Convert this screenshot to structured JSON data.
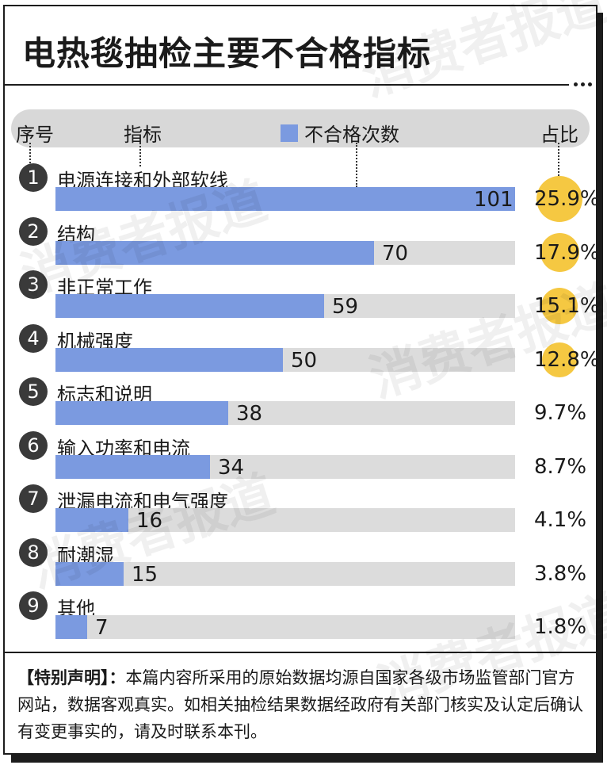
{
  "title": "电热毯抽检主要不合格指标",
  "header": {
    "seq_label": "序号",
    "indicator_label": "指标",
    "legend_label": "不合格次数",
    "pct_label": "占比"
  },
  "colors": {
    "bar": "#7b9ae0",
    "track": "#dcdcdc",
    "pct_circle": "#f5c842",
    "badge": "#3a3a3a"
  },
  "chart_data": {
    "type": "bar",
    "orientation": "horizontal",
    "legend": [
      "不合格次数"
    ],
    "categories": [
      "电源连接和外部软线",
      "结构",
      "非正常工作",
      "机械强度",
      "标志和说明",
      "输入功率和电流",
      "泄漏电流和电气强度",
      "耐潮湿",
      "其他"
    ],
    "values": [
      101,
      70,
      59,
      50,
      38,
      34,
      16,
      15,
      7
    ],
    "percent_labels": [
      "25.9%",
      "17.9%",
      "15.1%",
      "12.8%",
      "9.7%",
      "8.7%",
      "4.1%",
      "3.8%",
      "1.8%"
    ],
    "percent_values": [
      25.9,
      17.9,
      15.1,
      12.8,
      9.7,
      8.7,
      4.1,
      3.8,
      1.8
    ],
    "rank_labels": [
      "1",
      "2",
      "3",
      "4",
      "5",
      "6",
      "7",
      "8",
      "9"
    ],
    "xlim": [
      0,
      101
    ]
  },
  "rows": [
    {
      "rank": "1",
      "label": "电源连接和外部软线",
      "value": "101",
      "pct": "25.9%"
    },
    {
      "rank": "2",
      "label": "结构",
      "value": "70",
      "pct": "17.9%"
    },
    {
      "rank": "3",
      "label": "非正常工作",
      "value": "59",
      "pct": "15.1%"
    },
    {
      "rank": "4",
      "label": "机械强度",
      "value": "50",
      "pct": "12.8%"
    },
    {
      "rank": "5",
      "label": "标志和说明",
      "value": "38",
      "pct": "9.7%"
    },
    {
      "rank": "6",
      "label": "输入功率和电流",
      "value": "34",
      "pct": "8.7%"
    },
    {
      "rank": "7",
      "label": "泄漏电流和电气强度",
      "value": "16",
      "pct": "4.1%"
    },
    {
      "rank": "8",
      "label": "耐潮湿",
      "value": "15",
      "pct": "3.8%"
    },
    {
      "rank": "9",
      "label": "其他",
      "value": "7",
      "pct": "1.8%"
    }
  ],
  "note": {
    "heading": "【特别声明】：",
    "text": "本篇内容所采用的原始数据均源自国家各级市场监管部门官方网站，数据客观真实。如相关抽检结果数据经政府有关部门核实及认定后确认有变更事实的，请及时联系本刊。"
  },
  "watermark": "消费者报道"
}
